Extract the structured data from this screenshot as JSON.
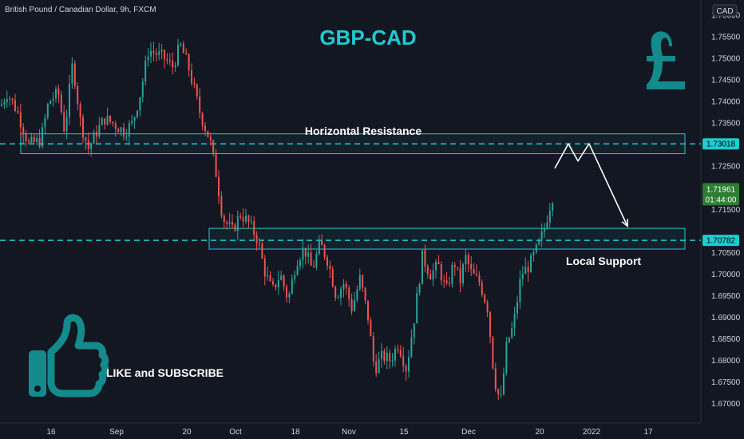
{
  "header": {
    "symbol_info": "British Pound / Canadian Dollar, 9h, FXCM"
  },
  "currency_badge": "CAD",
  "colors": {
    "background": "#131722",
    "accent": "#1ecbd0",
    "bull": "#26a69a",
    "bear": "#ef5350",
    "label_green": "#2e7d32"
  },
  "chart_data": {
    "type": "candlestick",
    "title": "GBP-CAD",
    "ylim": [
      1.6655,
      1.7635
    ],
    "x_tick_labels": [
      "16",
      "Sep",
      "20",
      "Oct",
      "18",
      "Nov",
      "15",
      "Dec",
      "20",
      "2022",
      "17"
    ],
    "y_tick_labels": [
      "1.67000",
      "1.67500",
      "1.68000",
      "1.68500",
      "1.69000",
      "1.69500",
      "1.70000",
      "1.70500",
      "1.71500",
      "1.72500",
      "1.73500",
      "1.74000",
      "1.74500",
      "1.75000",
      "1.75500",
      "1.76000"
    ],
    "path_keypoints": [
      [
        0,
        1.739
      ],
      [
        8,
        1.742
      ],
      [
        20,
        1.738
      ],
      [
        35,
        1.73
      ],
      [
        50,
        1.731
      ],
      [
        60,
        1.74
      ],
      [
        72,
        1.742
      ],
      [
        80,
        1.733
      ],
      [
        90,
        1.749
      ],
      [
        100,
        1.735
      ],
      [
        110,
        1.729
      ],
      [
        120,
        1.733
      ],
      [
        130,
        1.736
      ],
      [
        140,
        1.735
      ],
      [
        155,
        1.733
      ],
      [
        165,
        1.735
      ],
      [
        175,
        1.742
      ],
      [
        185,
        1.752
      ],
      [
        195,
        1.751
      ],
      [
        205,
        1.75
      ],
      [
        215,
        1.748
      ],
      [
        225,
        1.753
      ],
      [
        235,
        1.748
      ],
      [
        250,
        1.737
      ],
      [
        262,
        1.731
      ],
      [
        270,
        1.723
      ],
      [
        278,
        1.713
      ],
      [
        290,
        1.71
      ],
      [
        300,
        1.714
      ],
      [
        310,
        1.712
      ],
      [
        322,
        1.708
      ],
      [
        330,
        1.701
      ],
      [
        340,
        1.696
      ],
      [
        350,
        1.7
      ],
      [
        360,
        1.694
      ],
      [
        370,
        1.703
      ],
      [
        380,
        1.706
      ],
      [
        390,
        1.701
      ],
      [
        400,
        1.707
      ],
      [
        410,
        1.703
      ],
      [
        420,
        1.695
      ],
      [
        430,
        1.698
      ],
      [
        440,
        1.692
      ],
      [
        450,
        1.699
      ],
      [
        460,
        1.69
      ],
      [
        468,
        1.678
      ],
      [
        478,
        1.681
      ],
      [
        488,
        1.68
      ],
      [
        498,
        1.684
      ],
      [
        508,
        1.678
      ],
      [
        518,
        1.69
      ],
      [
        528,
        1.704
      ],
      [
        538,
        1.7
      ],
      [
        548,
        1.702
      ],
      [
        558,
        1.696
      ],
      [
        568,
        1.703
      ],
      [
        575,
        1.698
      ],
      [
        582,
        1.704
      ],
      [
        590,
        1.7
      ],
      [
        600,
        1.698
      ],
      [
        610,
        1.692
      ],
      [
        618,
        1.676
      ],
      [
        626,
        1.67
      ],
      [
        634,
        1.684
      ],
      [
        642,
        1.688
      ],
      [
        652,
        1.7
      ],
      [
        662,
        1.702
      ],
      [
        672,
        1.706
      ],
      [
        680,
        1.71
      ],
      [
        688,
        1.716
      ],
      [
        694,
        1.7196
      ]
    ],
    "latest": {
      "price": "1.71961",
      "countdown": "01:44:00"
    },
    "zones": [
      {
        "name": "Horizontal Resistance",
        "level": 1.73018,
        "level_label": "1.73018",
        "low": 1.7279,
        "high": 1.7325
      },
      {
        "name": "Local Support",
        "level": 1.70782,
        "level_label": "1.70782",
        "low": 1.7058,
        "high": 1.7106
      }
    ],
    "projection": [
      [
        695,
        1.7245
      ],
      [
        712,
        1.7302
      ],
      [
        724,
        1.7262
      ],
      [
        738,
        1.7302
      ],
      [
        786,
        1.7111
      ]
    ]
  },
  "cta": {
    "label": "LIKE and SUBSCRIBE"
  }
}
